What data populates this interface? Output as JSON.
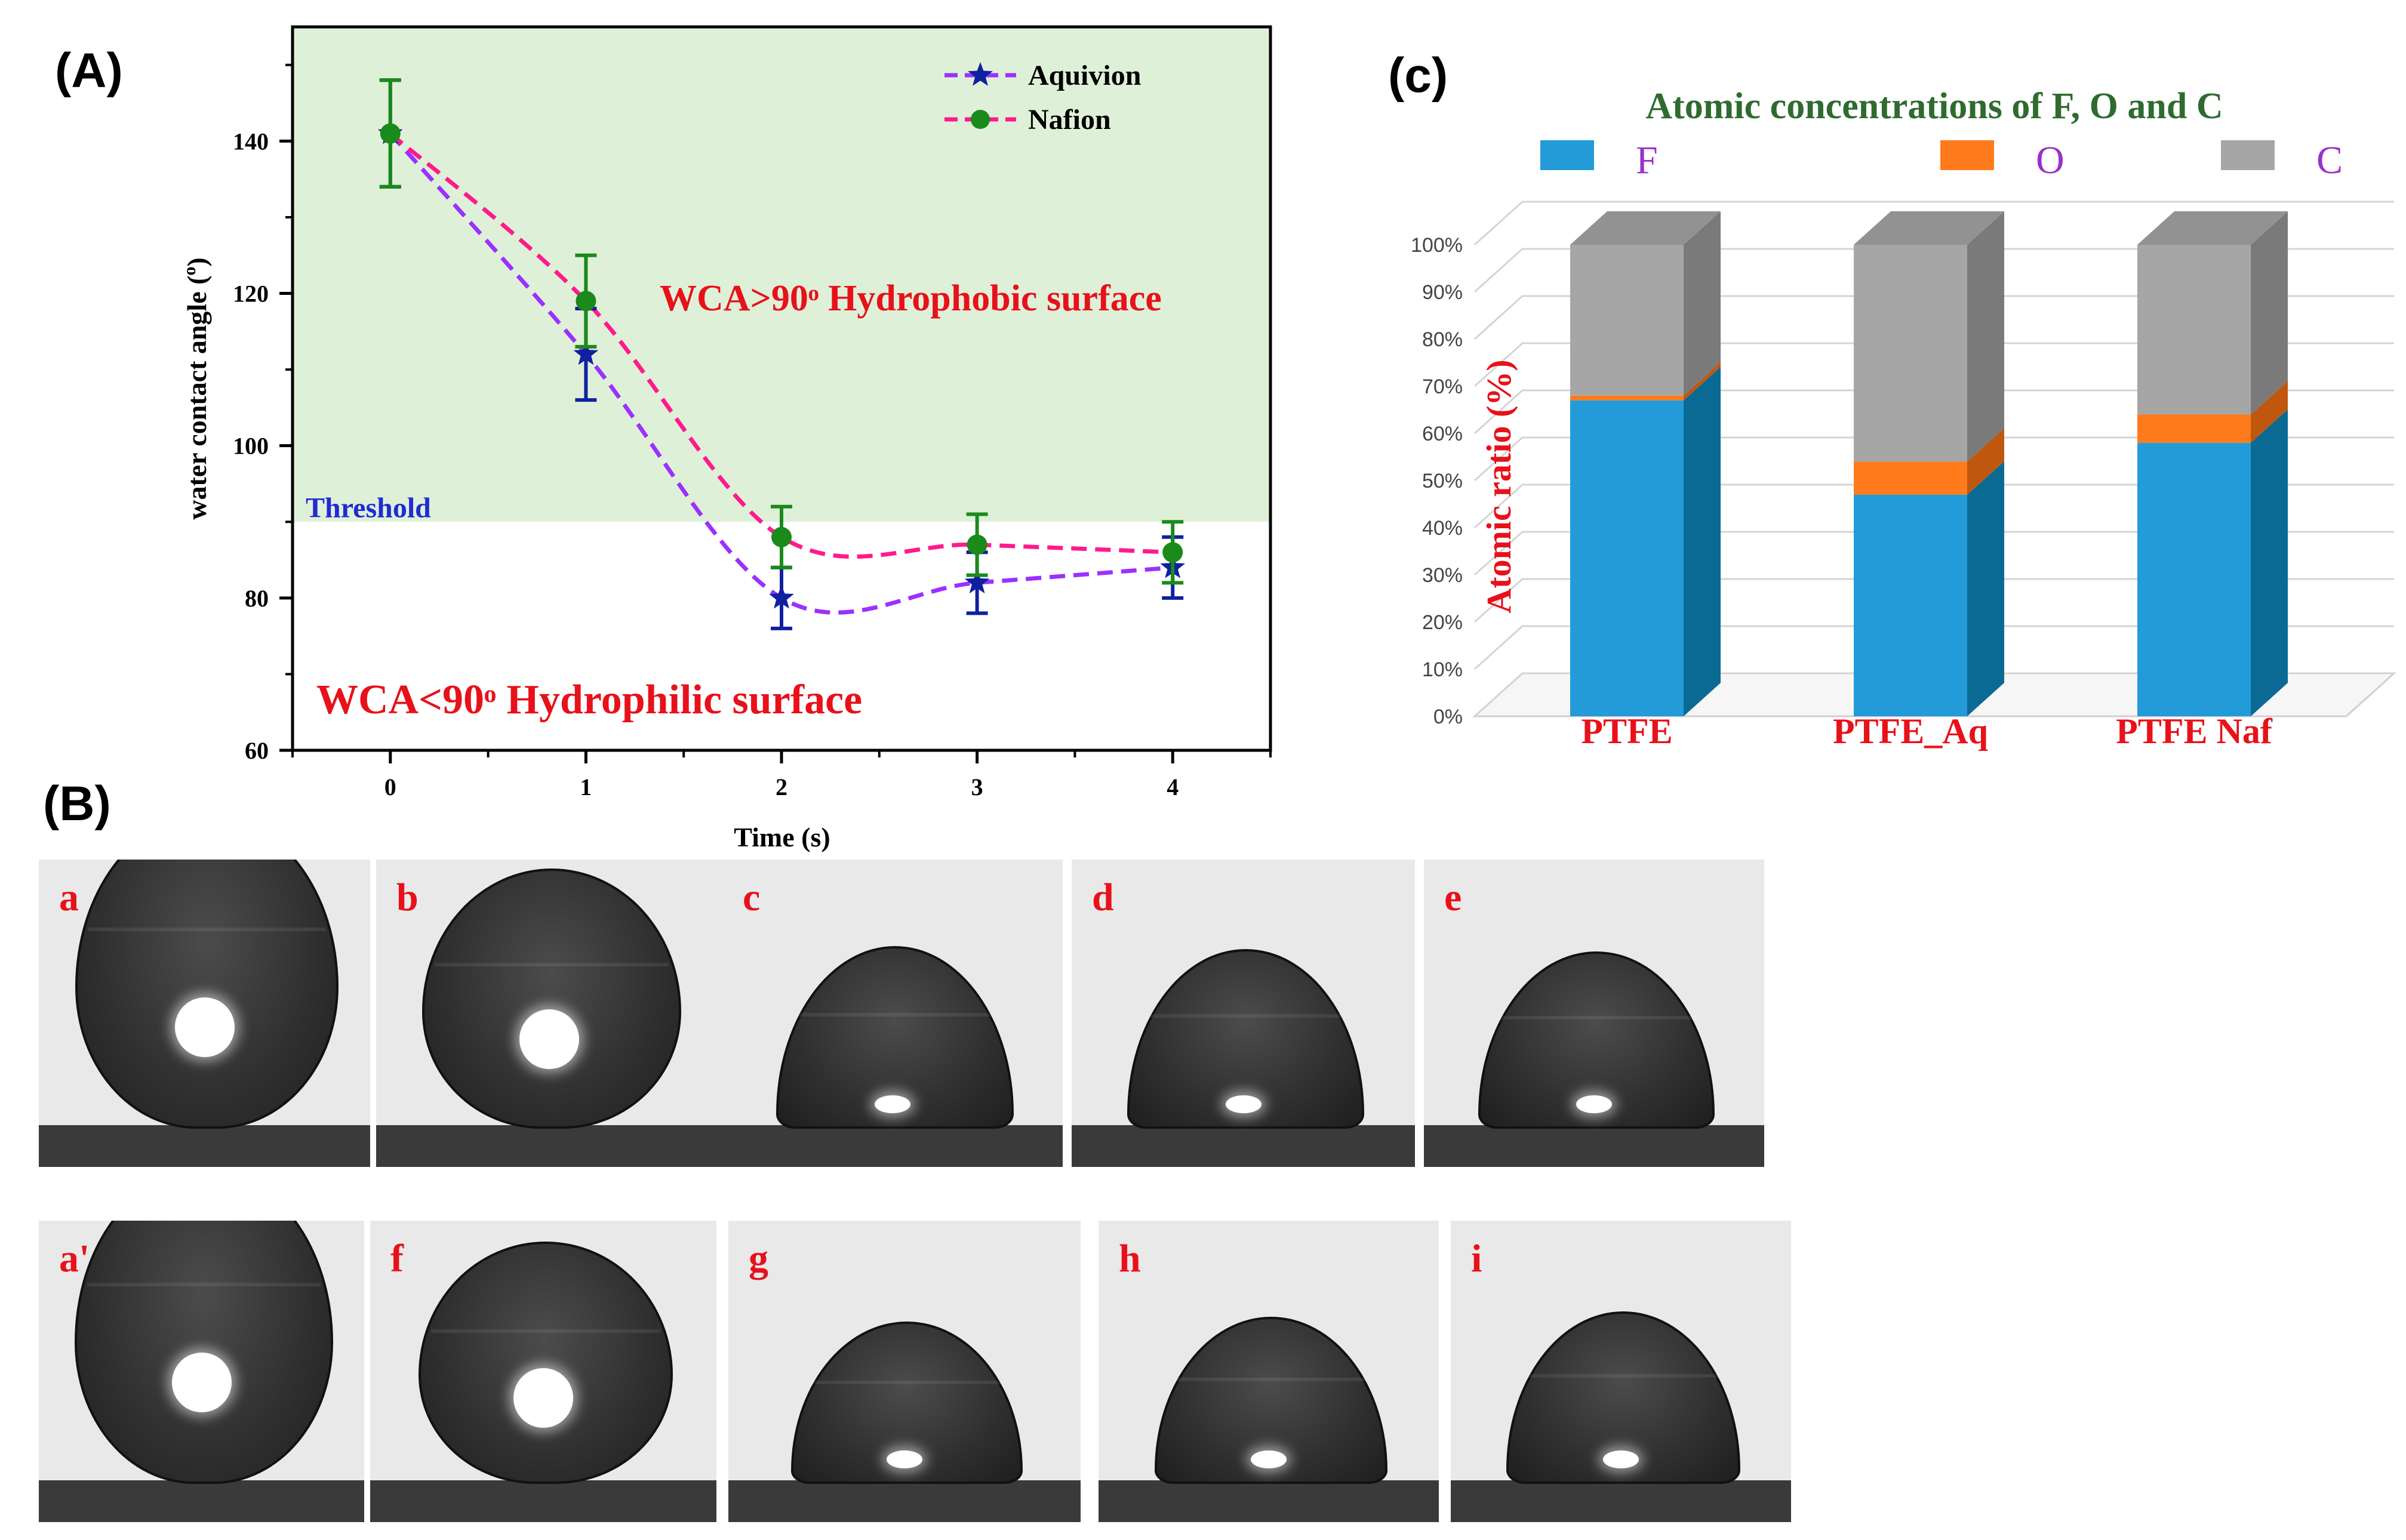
{
  "panels": {
    "A": "(A)",
    "B": "(B)",
    "C": "(c)"
  },
  "chart_data": [
    {
      "type": "line",
      "x": [
        0,
        1,
        2,
        3,
        4
      ],
      "xlabel": "Time (s)",
      "ylabel": "water contact angle (o)",
      "xlim": [
        -0.5,
        4.5
      ],
      "ylim": [
        60,
        155
      ],
      "xticks": [
        "0",
        "1",
        "2",
        "3",
        "4"
      ],
      "yticks": [
        "60",
        "80",
        "100",
        "120",
        "140"
      ],
      "series": [
        {
          "name": "Aquivion",
          "values": [
            141,
            112,
            80,
            82,
            84
          ],
          "err": [
            7,
            6,
            4,
            4,
            4
          ],
          "color": "#9b30ff",
          "marker": "star",
          "marker_color": "#1020a0"
        },
        {
          "name": "Nafion",
          "values": [
            141,
            119,
            88,
            87,
            86
          ],
          "err": [
            7,
            6,
            4,
            4,
            4
          ],
          "color": "#ff1a8c",
          "marker": "circle",
          "marker_color": "#1a8a1a"
        }
      ],
      "threshold": 90,
      "threshold_label": "Threshold",
      "shaded_region_color": "#dff0d8",
      "annotations": [
        "WCA>90ᵒ Hydrophobic surface",
        "WCA<90ᵒ Hydrophilic surface"
      ],
      "legend_position": "top-right",
      "grid": false
    },
    {
      "type": "bar",
      "stacked": true,
      "title": "Atomic concentrations of F, O and C",
      "ylabel": "Atomic ratio (%)",
      "categories": [
        "PTFE",
        "PTFE_Aq",
        "PTFE  Naf"
      ],
      "yticks": [
        "0%",
        "10%",
        "20%",
        "30%",
        "40%",
        "50%",
        "60%",
        "70%",
        "80%",
        "90%",
        "100%"
      ],
      "ylim": [
        0,
        100
      ],
      "series": [
        {
          "name": "F",
          "values": [
            67,
            47,
            58
          ],
          "color": "#239bd8",
          "side_color": "#0b6a94"
        },
        {
          "name": "O",
          "values": [
            1,
            7,
            6
          ],
          "color": "#ff7a1a",
          "side_color": "#c0570e"
        },
        {
          "name": "C",
          "values": [
            32,
            46,
            36
          ],
          "color": "#a6a6a6",
          "side_color": "#7a7a7a"
        }
      ],
      "legend_position": "top",
      "grid": true
    }
  ],
  "photos": {
    "row1": [
      {
        "label": "a",
        "contact_angle": 141
      },
      {
        "label": "b",
        "contact_angle": 119
      },
      {
        "label": "c",
        "contact_angle": 88
      },
      {
        "label": "d",
        "contact_angle": 87
      },
      {
        "label": "e",
        "contact_angle": 86
      }
    ],
    "row2": [
      {
        "label": "a'",
        "contact_angle": 141
      },
      {
        "label": "f",
        "contact_angle": 112
      },
      {
        "label": "g",
        "contact_angle": 80
      },
      {
        "label": "h",
        "contact_angle": 82
      },
      {
        "label": "i",
        "contact_angle": 84
      }
    ]
  }
}
